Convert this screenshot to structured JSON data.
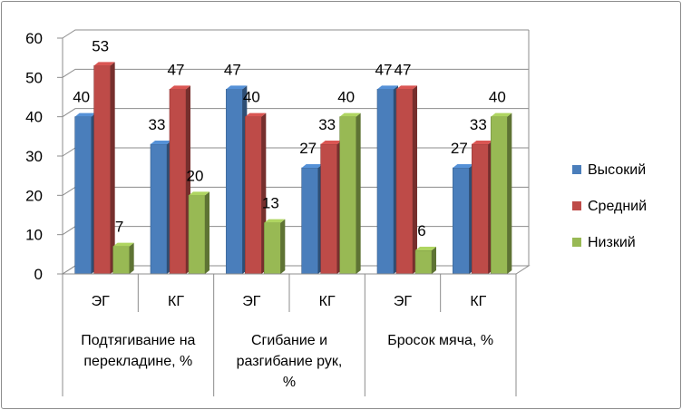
{
  "chart_data": {
    "type": "bar",
    "groups": [
      {
        "label_lines": [
          "Подтягивание на",
          "перекладине, %"
        ],
        "categories": [
          "ЭГ",
          "КГ"
        ]
      },
      {
        "label_lines": [
          "Сгибание и",
          "разгибание рук,",
          "%"
        ],
        "categories": [
          "ЭГ",
          "КГ"
        ]
      },
      {
        "label_lines": [
          "Бросок мяча, %"
        ],
        "categories": [
          "ЭГ",
          "КГ"
        ]
      }
    ],
    "categories": [
      "ЭГ",
      "КГ",
      "ЭГ",
      "КГ",
      "ЭГ",
      "КГ"
    ],
    "series": [
      {
        "name": "Высокий",
        "values": [
          40,
          33,
          47,
          27,
          47,
          27
        ],
        "color": "#4a7ebb"
      },
      {
        "name": "Средний",
        "values": [
          53,
          47,
          40,
          33,
          47,
          33
        ],
        "color": "#be4b48"
      },
      {
        "name": "Низкий",
        "values": [
          7,
          20,
          13,
          40,
          6,
          40
        ],
        "color": "#98b954"
      }
    ],
    "ylim": [
      0,
      60
    ],
    "yticks": [
      "0",
      "10",
      "20",
      "30",
      "40",
      "50",
      "60"
    ],
    "grid": true,
    "legend_position": "right",
    "style": "3d-clustered-column"
  }
}
